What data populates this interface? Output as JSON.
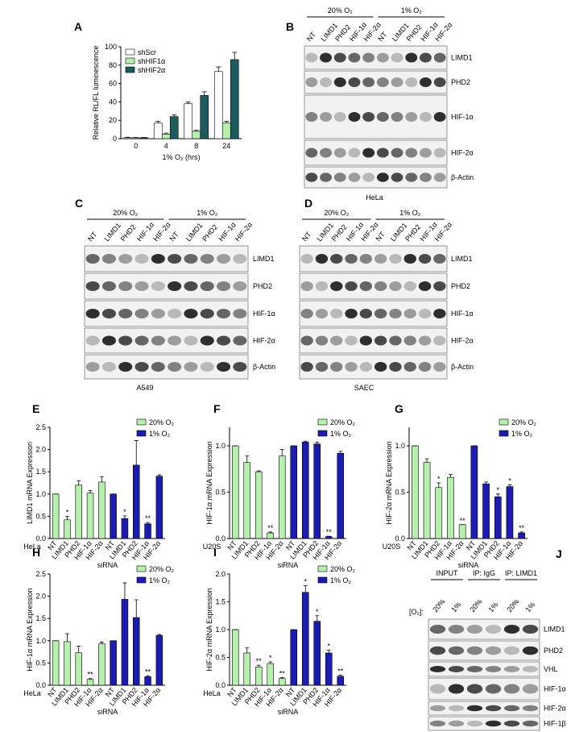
{
  "chart_data": [
    {
      "type": "bar",
      "panel": "A",
      "ylabel": "Relative RL/FL luminescence",
      "xlabel": "1% O₂ (hrs)",
      "categories": [
        "0",
        "4",
        "8",
        "24"
      ],
      "legend": "top-left",
      "series": [
        {
          "name": "shScr",
          "color": "#ffffff",
          "values": [
            1,
            17,
            38,
            73
          ],
          "errors": [
            0.5,
            2,
            2,
            5
          ]
        },
        {
          "name": "shHIF1α",
          "color": "#b6efae",
          "values": [
            1,
            5,
            8,
            17
          ],
          "errors": [
            0.3,
            1,
            1,
            2
          ]
        },
        {
          "name": "shHIF2α",
          "color": "#1d5b5e",
          "values": [
            1,
            24,
            47,
            86
          ],
          "errors": [
            0.3,
            2,
            4,
            8
          ]
        }
      ],
      "ylim": [
        0,
        100
      ],
      "yticks": [
        0,
        20,
        40,
        60,
        80,
        100
      ]
    },
    {
      "type": "bar",
      "panel": "E",
      "ylabel": "LIMD1 mRNA Expression",
      "xlabel": "siRNA",
      "cell_line": "HeLa",
      "legend": "top-right",
      "categories": [
        "NT",
        "LIMD1",
        "PHD2",
        "HIF-1α",
        "HIF-2α",
        "NT",
        "LIMD1",
        "PHD2",
        "HIF-1α",
        "HIF-2α"
      ],
      "series": [
        {
          "name": "20% O₂",
          "color": "#b6efae",
          "values": [
            1.0,
            0.42,
            1.2,
            1.02,
            1.27,
            null,
            null,
            null,
            null,
            null
          ],
          "errors": [
            0,
            0.08,
            0.1,
            0.06,
            0.12,
            null,
            null,
            null,
            null,
            null
          ],
          "annotations": [
            null,
            "*",
            null,
            null,
            null,
            null,
            null,
            null,
            null,
            null
          ]
        },
        {
          "name": "1% O₂",
          "color": "#1c1cb0",
          "values": [
            null,
            null,
            null,
            null,
            null,
            1.0,
            0.45,
            1.65,
            0.33,
            1.4
          ],
          "errors": [
            null,
            null,
            null,
            null,
            null,
            0,
            0.06,
            0.55,
            0.03,
            0.03
          ],
          "annotations": [
            null,
            null,
            null,
            null,
            null,
            null,
            "*",
            null,
            "**",
            null
          ]
        }
      ],
      "ylim": [
        0,
        2.5
      ],
      "yticks": [
        {
          "value": 0,
          "label": "0.0"
        },
        0.5,
        {
          "value": 1,
          "label": "1.0"
        },
        1.5,
        {
          "value": 2,
          "label": "2.0"
        },
        2.5
      ]
    },
    {
      "type": "bar",
      "panel": "F",
      "ylabel": "HIF-1α mRNA Expression",
      "xlabel": "siRNA",
      "cell_line": "U20S",
      "legend": "top-right",
      "categories": [
        "NT",
        "LIMD1",
        "PHD2",
        "HIF-1α",
        "HIF-2α",
        "NT",
        "LIMD1",
        "PHD2",
        "HIF-1α",
        "HIF-2α"
      ],
      "series": [
        {
          "name": "20% O₂",
          "color": "#b6efae",
          "values": [
            1.0,
            0.82,
            0.72,
            0.06,
            0.89,
            null,
            null,
            null,
            null,
            null
          ],
          "errors": [
            0,
            0.07,
            0.01,
            0.01,
            0.07,
            null,
            null,
            null,
            null,
            null
          ],
          "annotations": [
            null,
            null,
            null,
            "**",
            null,
            null,
            null,
            null,
            null,
            null
          ]
        },
        {
          "name": "1% O₂",
          "color": "#1c1cb0",
          "values": [
            null,
            null,
            null,
            null,
            null,
            1.0,
            1.04,
            1.02,
            0.02,
            0.92
          ],
          "errors": [
            null,
            null,
            null,
            null,
            null,
            0,
            0.01,
            0.02,
            0.005,
            0.02
          ],
          "annotations": [
            null,
            null,
            null,
            null,
            null,
            null,
            null,
            null,
            "**",
            null
          ]
        }
      ],
      "ylim": [
        0,
        1.2
      ],
      "yticks": [
        {
          "value": 0,
          "label": "0.0"
        },
        0.5,
        {
          "value": 1,
          "label": "1.0"
        }
      ]
    },
    {
      "type": "bar",
      "panel": "G",
      "ylabel": "HIF-2α mRNA Expression",
      "xlabel": "siRNA",
      "cell_line": "U20S",
      "legend": "top-right",
      "categories": [
        "NT",
        "LIMD1",
        "PHD2",
        "HIF-1α",
        "HIF-2α",
        "NT",
        "LIMD1",
        "PHD2",
        "HIF-1α",
        "HIF-2α"
      ],
      "series": [
        {
          "name": "20% O₂",
          "color": "#b6efae",
          "values": [
            1.0,
            0.82,
            0.55,
            0.66,
            0.15,
            null,
            null,
            null,
            null,
            null
          ],
          "errors": [
            0,
            0.04,
            0.05,
            0.03,
            0,
            null,
            null,
            null,
            null,
            null
          ],
          "annotations": [
            null,
            null,
            "*",
            null,
            "**",
            null,
            null,
            null,
            null,
            null
          ]
        },
        {
          "name": "1% O₂",
          "color": "#1c1cb0",
          "values": [
            null,
            null,
            null,
            null,
            null,
            1.0,
            0.59,
            0.45,
            0.56,
            0.06
          ],
          "errors": [
            null,
            null,
            null,
            null,
            null,
            0,
            0.02,
            0.03,
            0.02,
            0.01
          ],
          "annotations": [
            null,
            null,
            null,
            null,
            null,
            null,
            null,
            "*",
            "*",
            "**"
          ]
        }
      ],
      "ylim": [
        0,
        1.2
      ],
      "yticks": [
        {
          "value": 0,
          "label": "0.0"
        },
        0.5,
        {
          "value": 1,
          "label": "1.0"
        }
      ]
    },
    {
      "type": "bar",
      "panel": "H",
      "ylabel": "HIF-1α mRNA Expression",
      "xlabel": "siRNA",
      "cell_line": "HeLa",
      "legend": "top-right",
      "categories": [
        "NT",
        "LIMD1",
        "PHD2",
        "HIF-1α",
        "HIF-2α",
        "NT",
        "LIMD1",
        "PHD2",
        "HIF-1α",
        "HIF-2α"
      ],
      "series": [
        {
          "name": "20% O₂",
          "color": "#b6efae",
          "values": [
            1.0,
            0.98,
            0.73,
            0.13,
            0.93,
            null,
            null,
            null,
            null,
            null
          ],
          "errors": [
            0,
            0.18,
            0.15,
            0.02,
            0.04,
            null,
            null,
            null,
            null,
            null
          ],
          "annotations": [
            null,
            null,
            null,
            "**",
            null,
            null,
            null,
            null,
            null,
            null
          ]
        },
        {
          "name": "1% O₂",
          "color": "#1c1cb0",
          "values": [
            null,
            null,
            null,
            null,
            null,
            1.0,
            1.93,
            1.52,
            0.19,
            1.12
          ],
          "errors": [
            null,
            null,
            null,
            null,
            null,
            0,
            0.37,
            0.4,
            0.02,
            0.02
          ],
          "annotations": [
            null,
            null,
            null,
            null,
            null,
            null,
            null,
            null,
            "**",
            null
          ]
        }
      ],
      "ylim": [
        0,
        2.5
      ],
      "yticks": [
        {
          "value": 0,
          "label": "0.0"
        },
        0.5,
        {
          "value": 1,
          "label": "1.0"
        },
        1.5,
        {
          "value": 2,
          "label": "2.0"
        },
        2.5
      ]
    },
    {
      "type": "bar",
      "panel": "I",
      "ylabel": "HIF-2α mRNA Expression",
      "xlabel": "siRNA",
      "cell_line": "HeLa",
      "legend": "top-right",
      "categories": [
        "NT",
        "LIMD1",
        "PHD2",
        "HIF-1α",
        "HIF-2α",
        "NT",
        "LIMD1",
        "PHD2",
        "HIF-1α",
        "HIF-2α"
      ],
      "series": [
        {
          "name": "20% O₂",
          "color": "#b6efae",
          "values": [
            1.0,
            0.58,
            0.33,
            0.39,
            0.12,
            null,
            null,
            null,
            null,
            null
          ],
          "errors": [
            0,
            0.09,
            0.03,
            0.03,
            0.02,
            null,
            null,
            null,
            null,
            null
          ],
          "annotations": [
            null,
            null,
            "**",
            "*",
            "**",
            null,
            null,
            null,
            null,
            null
          ]
        },
        {
          "name": "1% O₂",
          "color": "#1c1cb0",
          "values": [
            null,
            null,
            null,
            null,
            null,
            1.0,
            1.67,
            1.15,
            0.58,
            0.16
          ],
          "errors": [
            null,
            null,
            null,
            null,
            null,
            0,
            0.12,
            0.1,
            0.05,
            0.02
          ],
          "annotations": [
            null,
            null,
            null,
            null,
            null,
            null,
            "*",
            "*",
            "*",
            "**"
          ]
        }
      ],
      "ylim": [
        0,
        2.0
      ],
      "yticks": [
        {
          "value": 0,
          "label": "0.0"
        },
        0.5,
        {
          "value": 1,
          "label": "1.0"
        },
        1.5,
        {
          "value": 2,
          "label": "2.0"
        }
      ]
    }
  ],
  "blots": [
    {
      "panel": "B",
      "groups": [
        "20% O₂",
        "1% O₂"
      ],
      "lanes": [
        "NT",
        "LIMD1",
        "PHD2",
        "HIF-1α",
        "HIF-2α",
        "NT",
        "LIMD1",
        "PHD2",
        "HIF-1α",
        "HIF-2α"
      ],
      "rows": [
        "LIMD1",
        "PHD2",
        "HIF-1α",
        "HIF-2α",
        "β-Actin"
      ],
      "cell_line": "HeLa"
    },
    {
      "panel": "C",
      "groups": [
        "20% O₂",
        "1% O₂"
      ],
      "lanes": [
        "NT",
        "LIMD1",
        "PHD2",
        "HIF-1α",
        "HIF-2α",
        "NT",
        "LIMD1",
        "PHD2",
        "HIF-1α",
        "HIF-2α"
      ],
      "rows": [
        "LIMD1",
        "PHD2",
        "HIF-1α",
        "HIF-2α",
        "β-Actin"
      ],
      "cell_line": "A549"
    },
    {
      "panel": "D",
      "groups": [
        "20% O₂",
        "1% O₂"
      ],
      "lanes": [
        "NT",
        "LIMD1",
        "PHD2",
        "HIF-1α",
        "HIF-2α",
        "NT",
        "LIMD1",
        "PHD2",
        "HIF-1α",
        "HIF-2α"
      ],
      "rows": [
        "LIMD1",
        "PHD2",
        "HIF-1α",
        "HIF-2α",
        "β-Actin"
      ],
      "cell_line": "SAEC"
    },
    {
      "panel": "J",
      "groups": [
        "INPUT",
        "IP: IgG",
        "IP: LIMD1"
      ],
      "condition_label": "[O₂]:",
      "lanes": [
        "20%",
        "1%",
        "20%",
        "1%",
        "20%",
        "1%"
      ],
      "rows": [
        "LIMD1",
        "PHD2",
        "VHL",
        "HIF-1α",
        "HIF-2α",
        "HIF-1β"
      ]
    }
  ]
}
